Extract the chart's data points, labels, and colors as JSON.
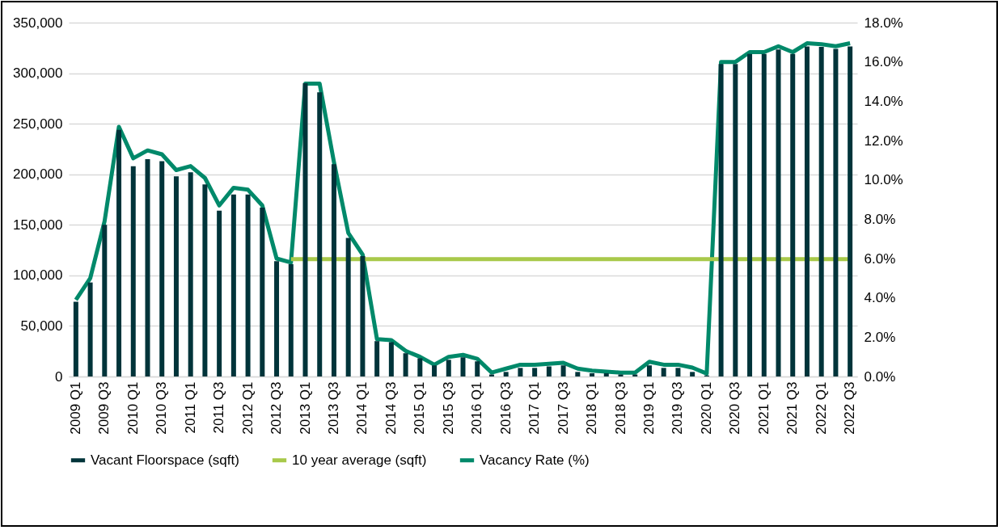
{
  "chart_data": {
    "type": "bar",
    "categories": [
      "2009 Q1",
      null,
      "2009 Q3",
      null,
      "2010 Q1",
      null,
      "2010 Q3",
      null,
      "2011 Q1",
      null,
      "2011 Q3",
      null,
      "2012 Q1",
      null,
      "2012 Q3",
      null,
      "2013 Q1",
      null,
      "2013 Q3",
      null,
      "2014 Q1",
      null,
      "2014 Q3",
      null,
      "2015 Q1",
      null,
      "2015 Q3",
      null,
      "2016 Q1",
      null,
      "2016 Q3",
      null,
      "2017 Q1",
      null,
      "2017 Q3",
      null,
      "2018 Q1",
      null,
      "2018 Q3",
      null,
      "2019 Q1",
      null,
      "2019 Q3",
      null,
      "2020 Q1",
      null,
      "2020 Q3",
      null,
      "2021 Q1",
      null,
      "2021 Q3",
      null,
      "2022 Q1",
      null,
      "2022 Q3"
    ],
    "series": [
      {
        "name": "Vacant Floorspace (sqft)",
        "color": "#00343a",
        "values": [
          74000,
          93000,
          150000,
          244000,
          208000,
          215000,
          213000,
          198000,
          202000,
          190000,
          164000,
          180000,
          180000,
          167000,
          114000,
          111000,
          290000,
          281000,
          210000,
          137000,
          119000,
          35000,
          34000,
          23000,
          18000,
          11000,
          16500,
          19000,
          15000,
          2000,
          4500,
          8500,
          8500,
          10000,
          11000,
          4500,
          3200,
          3200,
          2000,
          2000,
          11000,
          8500,
          8500,
          4500,
          1000,
          309000,
          309000,
          319000,
          319000,
          323500,
          319000,
          326500,
          326000,
          324000,
          326500
        ]
      },
      {
        "name": "10 year average (sqft)",
        "type": "line",
        "color": "#a8c94a",
        "values": [
          null,
          null,
          null,
          null,
          null,
          null,
          null,
          null,
          null,
          null,
          null,
          null,
          null,
          null,
          null,
          116000,
          116000,
          116000,
          116000,
          116000,
          116000,
          116000,
          116000,
          116000,
          116000,
          116000,
          116000,
          116000,
          116000,
          116000,
          116000,
          116000,
          116000,
          116000,
          116000,
          116000,
          116000,
          116000,
          116000,
          116000,
          116000,
          116000,
          116000,
          116000,
          116000,
          116000,
          116000,
          116000,
          116000,
          116000,
          116000,
          116000,
          116000,
          116000,
          116000
        ]
      },
      {
        "name": "Vacancy Rate (%)",
        "type": "line",
        "axis": "y2",
        "color": "#00896a",
        "values": [
          3.9,
          5.0,
          7.9,
          12.7,
          11.1,
          11.5,
          11.3,
          10.5,
          10.7,
          10.1,
          8.7,
          9.6,
          9.5,
          8.7,
          6.0,
          5.8,
          14.9,
          14.9,
          10.9,
          7.3,
          6.2,
          1.9,
          1.85,
          1.3,
          1.0,
          0.6,
          1.0,
          1.1,
          0.9,
          0.2,
          0.4,
          0.6,
          0.6,
          0.65,
          0.7,
          0.4,
          0.3,
          0.25,
          0.2,
          0.2,
          0.75,
          0.6,
          0.6,
          0.45,
          0.15,
          16.0,
          16.0,
          16.5,
          16.5,
          16.8,
          16.5,
          16.95,
          16.9,
          16.8,
          16.95
        ]
      }
    ],
    "ylim": [
      0,
      350000
    ],
    "yticks": [
      0,
      {
        "value": 50000,
        "label": "50,000"
      },
      {
        "value": 100000,
        "label": "100,000"
      },
      {
        "value": 150000,
        "label": "150,000"
      },
      {
        "value": 200000,
        "label": "200,000"
      },
      {
        "value": 250000,
        "label": "250,000"
      },
      {
        "value": 300000,
        "label": "300,000"
      },
      {
        "value": 350000,
        "label": "350,000"
      }
    ],
    "y2lim": [
      0,
      18
    ],
    "y2ticks": [
      {
        "value": 0,
        "label": "0.0%"
      },
      {
        "value": 2,
        "label": "2.0%"
      },
      {
        "value": 4,
        "label": "4.0%"
      },
      {
        "value": 6,
        "label": "6.0%"
      },
      {
        "value": 8,
        "label": "8.0%"
      },
      {
        "value": 10,
        "label": "10.0%"
      },
      {
        "value": 12,
        "label": "12.0%"
      },
      {
        "value": 14,
        "label": "14.0%"
      },
      {
        "value": 16,
        "label": "16.0%"
      },
      {
        "value": 18,
        "label": "18.0%"
      }
    ],
    "grid": "y",
    "legend": "bottom"
  }
}
